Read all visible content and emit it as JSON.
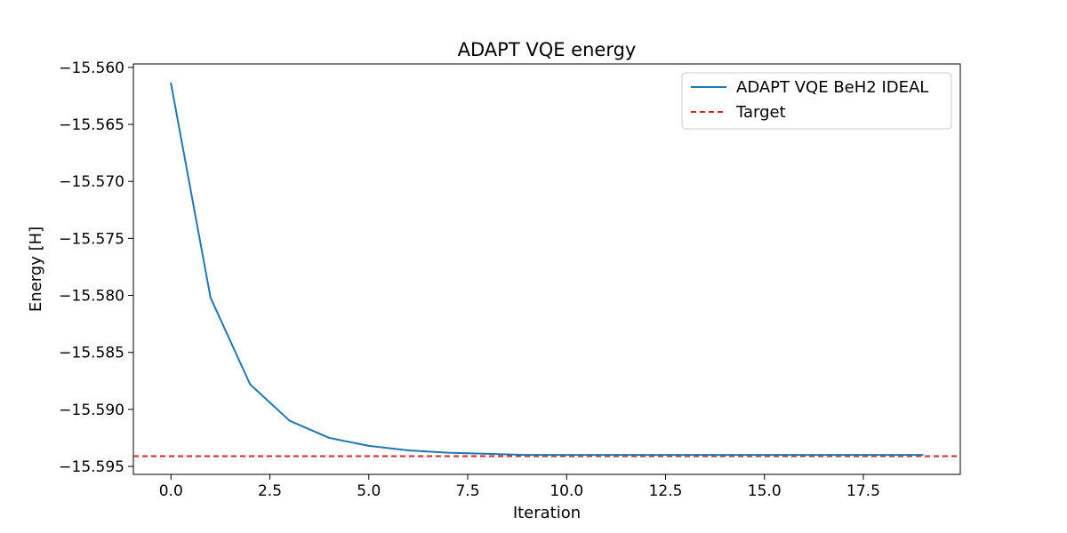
{
  "chart_data": {
    "type": "line",
    "title": "ADAPT VQE energy",
    "xlabel": "Iteration",
    "ylabel": "Energy [H]",
    "xlim": [
      -0.95,
      19.95
    ],
    "ylim": [
      -15.5957,
      -15.5597
    ],
    "x_ticks": [
      0.0,
      2.5,
      5.0,
      7.5,
      10.0,
      12.5,
      15.0,
      17.5
    ],
    "x_tick_labels": [
      "0.0",
      "2.5",
      "5.0",
      "7.5",
      "10.0",
      "12.5",
      "15.0",
      "17.5"
    ],
    "y_ticks": [
      -15.56,
      -15.565,
      -15.57,
      -15.575,
      -15.58,
      -15.585,
      -15.59,
      -15.595
    ],
    "y_tick_labels": [
      "−15.560",
      "−15.565",
      "−15.570",
      "−15.575",
      "−15.580",
      "−15.585",
      "−15.590",
      "−15.595"
    ],
    "grid": false,
    "legend_position": "top-right",
    "series": [
      {
        "name": "ADAPT VQE BeH2 IDEAL",
        "color": "#1f77b4",
        "style": "solid",
        "x": [
          0,
          1,
          2,
          3,
          4,
          5,
          6,
          7,
          8,
          9,
          10,
          11,
          12,
          13,
          14,
          15,
          16,
          17,
          18,
          19
        ],
        "y": [
          -15.5614,
          -15.5802,
          -15.5878,
          -15.591,
          -15.5925,
          -15.5932,
          -15.5936,
          -15.5938,
          -15.5939,
          -15.594,
          -15.594,
          -15.594,
          -15.594,
          -15.594,
          -15.594,
          -15.594,
          -15.594,
          -15.594,
          -15.594,
          -15.594
        ]
      }
    ],
    "reference_lines": [
      {
        "name": "Target",
        "y": -15.5941,
        "color": "#d62728",
        "style": "dashed"
      }
    ]
  }
}
